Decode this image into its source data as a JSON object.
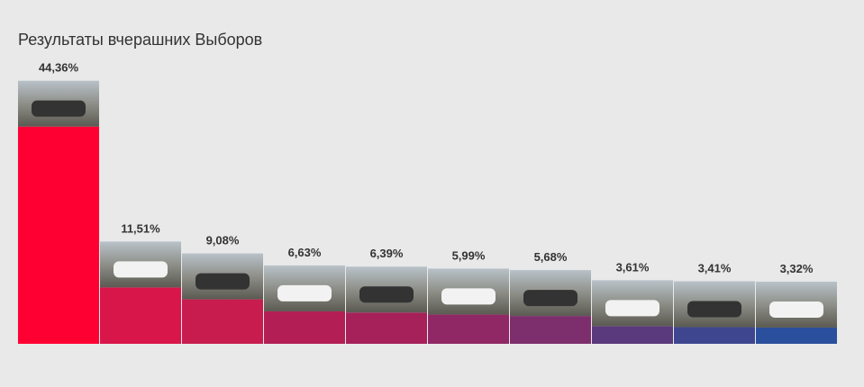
{
  "chart_data": {
    "type": "bar",
    "title": "Результаты вчерашних Выборов",
    "categories": [
      null,
      null,
      null,
      null,
      null,
      null,
      null,
      null,
      null,
      null
    ],
    "values": [
      44.36,
      11.51,
      9.08,
      6.63,
      6.39,
      5.99,
      5.68,
      3.61,
      3.41,
      3.32
    ],
    "value_labels": [
      "44,36%",
      "11,51%",
      "9,08%",
      "6,63%",
      "6,39%",
      "5,99%",
      "5,68%",
      "3,61%",
      "3,41%",
      "3,32%"
    ],
    "colors": [
      "#ff0033",
      "#d8164a",
      "#c81c4e",
      "#b31f55",
      "#a6215a",
      "#8f2864",
      "#7d2e6c",
      "#5a3a7c",
      "#3f4690",
      "#2a4f9c"
    ]
  }
}
